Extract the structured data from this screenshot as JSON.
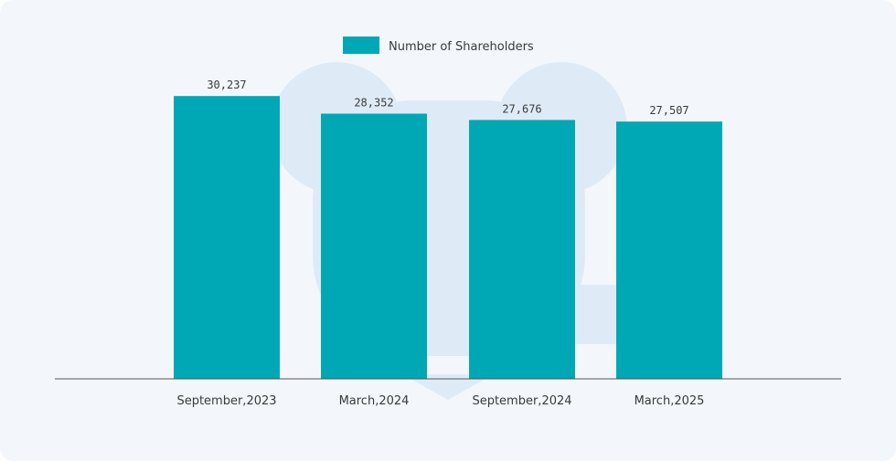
{
  "chart_data": {
    "type": "bar",
    "categories": [
      "September,2023",
      "March,2024",
      "September,2024",
      "March,2025"
    ],
    "series": [
      {
        "name": "Number of Shareholders",
        "values": [
          30237,
          28352,
          27676,
          27507
        ]
      }
    ],
    "data_labels": [
      "30,237",
      "28,352",
      "27,676",
      "27,507"
    ],
    "legend_position": "top-center",
    "grid": false,
    "ylim": [
      0,
      32500
    ],
    "colors": {
      "bar": "#00a8b5",
      "axis": "#555555",
      "watermark": "#deebf7",
      "background": "#f3f7fc"
    }
  }
}
